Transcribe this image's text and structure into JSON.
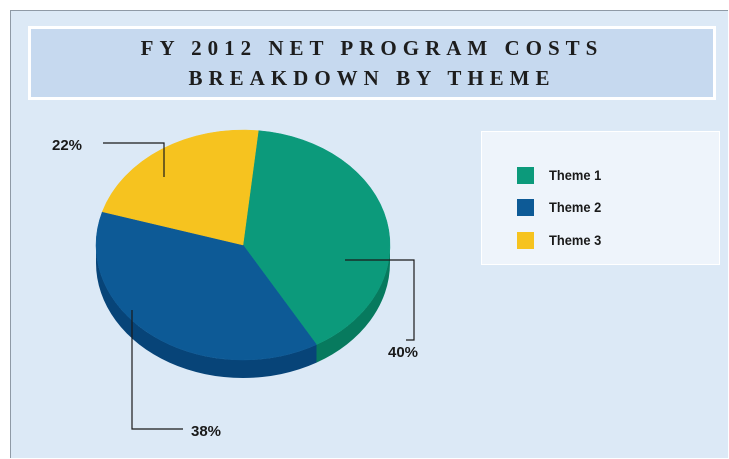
{
  "chart_data": {
    "type": "pie",
    "title_lines": [
      "FY 2012 NET PROGRAM COSTS",
      "BREAKDOWN BY THEME"
    ],
    "series": [
      {
        "name": "Theme 1",
        "value": 40,
        "label": "40%",
        "color": "#0c9a7b",
        "side": "#077a5e"
      },
      {
        "name": "Theme 2",
        "value": 38,
        "label": "38%",
        "color": "#0d5a96",
        "side": "#074478"
      },
      {
        "name": "Theme 3",
        "value": 22,
        "label": "22%",
        "color": "#f6c31f",
        "side": "#d5a413"
      }
    ],
    "legend_position": "right"
  }
}
